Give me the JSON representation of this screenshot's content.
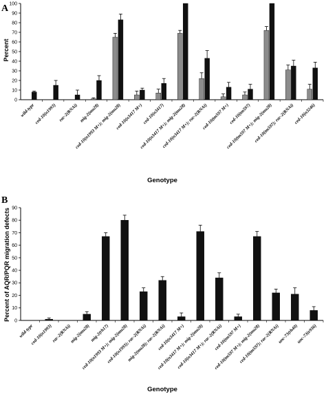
{
  "colors": {
    "gray_series": "#8c8c8c",
    "black_series": "#111111",
    "axis": "#000000"
  },
  "chart_data": [
    {
      "panel": "A",
      "type": "bar",
      "ylabel": "Percent",
      "xlabel": "Genotype",
      "ylim": [
        0,
        100
      ],
      "yticks": [
        0,
        10,
        20,
        30,
        40,
        50,
        60,
        70,
        80,
        90,
        100
      ],
      "grid": false,
      "legend": "none",
      "categories": [
        "wild-type",
        "ced-10(n1993)",
        "rac-2(RNAi)",
        "mig-2(mu28)",
        "ced-10(n1993 M+); mig-2(mu28)",
        "ced-10(n3417 M+)",
        "ced-10(n3417)",
        "ced-10(n3417 M+); mig-2(mu28)",
        "ced-10(n3417 M+); rac-2(RNAi)",
        "ced-10(tm597 M+)",
        "ced-10(tm597)",
        "ced-10(tm597 M+); mig-2(mu28)",
        "ced-10(tm597); rac-2(RNAi)",
        "ced-10(n3246)"
      ],
      "series": [
        {
          "color": "#8c8c8c",
          "values": [
            null,
            null,
            null,
            1,
            65,
            5,
            7,
            69,
            22,
            3,
            5,
            72,
            31,
            11
          ],
          "errors": [
            null,
            null,
            null,
            1,
            4,
            4,
            4,
            3,
            6,
            3,
            3,
            4,
            5,
            5
          ]
        },
        {
          "color": "#111111",
          "values": [
            8,
            15,
            5,
            20,
            83,
            10,
            17,
            100,
            43,
            13,
            11,
            100,
            35,
            33
          ],
          "errors": [
            1,
            5,
            5,
            5,
            6,
            2,
            5,
            0,
            8,
            5,
            5,
            0,
            6,
            6
          ]
        }
      ]
    },
    {
      "panel": "B",
      "type": "bar",
      "ylabel": "Percent of AQR/PQR migration defects",
      "xlabel": "Genotype",
      "ylim": [
        0,
        90
      ],
      "yticks": [
        0,
        10,
        20,
        30,
        40,
        50,
        60,
        70,
        80,
        90
      ],
      "grid": false,
      "legend": "none",
      "categories": [
        "wild-type",
        "ced-10(n1993)",
        "rac-2(RNAi)",
        "mig-2(mu28)",
        "mig-2(rh17)",
        "ced-10(n1993 M+); mig-2(mu28)",
        "ced-10(n1993); rac-2(RNAi)",
        "mig-2(mu28); rac-2(RNAi)",
        "ced-10(n3417 M+)",
        "ced-10(n3417 M+); mig-2(mu28)",
        "ced-10(n3417 M+); rac-2(RNAi)",
        "ced-10(tm597 M+)",
        "ced-10(tm597 M+); mig-2(mu28)",
        "ced-10(tm597); rac-2(RNAi)",
        "unc-73(rh40)",
        "unc-73(e936)"
      ],
      "series": [
        {
          "color": "#111111",
          "values": [
            0,
            1,
            0,
            5,
            67,
            80,
            23,
            32,
            3,
            71,
            34,
            3,
            67,
            22,
            21,
            8
          ],
          "errors": [
            0,
            1,
            0,
            2,
            3,
            4,
            3,
            3,
            3,
            5,
            4,
            2,
            4,
            3,
            5,
            3
          ]
        }
      ]
    }
  ]
}
